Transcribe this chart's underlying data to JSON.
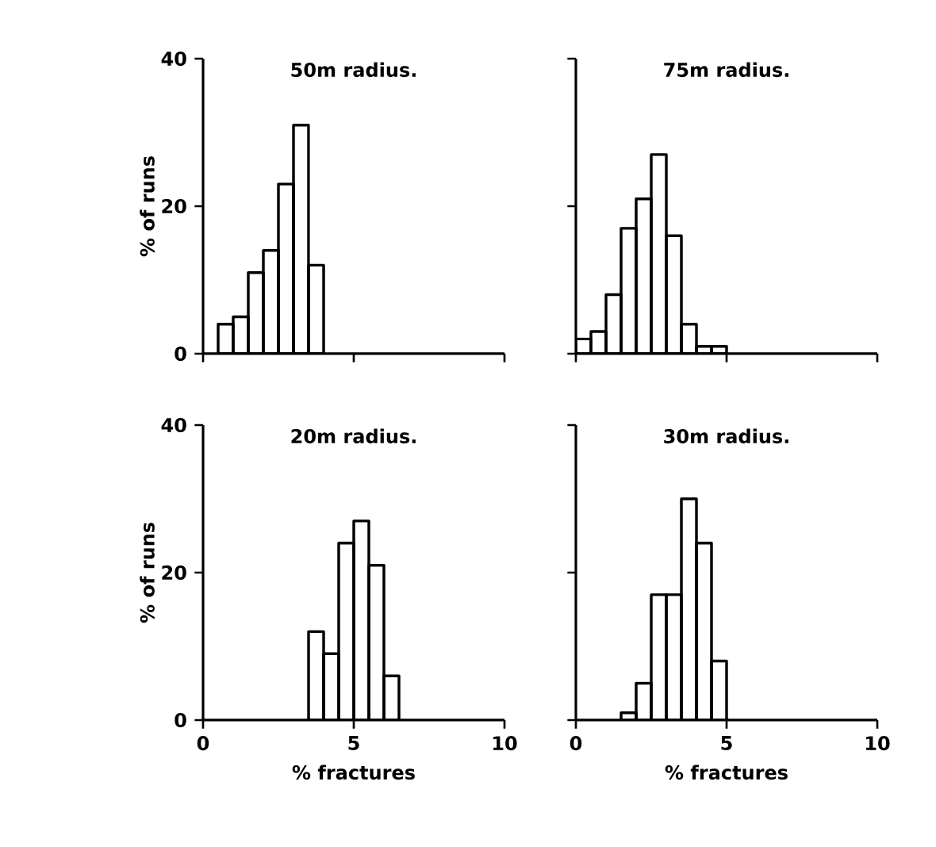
{
  "chart_data": [
    {
      "type": "histogram",
      "title": "50m radius.",
      "ylabel": "% of runs",
      "bins": [
        0.5,
        1,
        1.5,
        2,
        2.5,
        3,
        3.5,
        4
      ],
      "values": [
        4,
        5,
        11,
        14,
        23,
        31,
        12
      ],
      "color": "#000000",
      "xlim": [
        0,
        10
      ],
      "ylim": [
        0,
        40
      ],
      "xticks": [
        {
          "value": 0,
          "label": null
        },
        {
          "value": 5,
          "label": null
        },
        {
          "value": 10,
          "label": null
        }
      ],
      "yticks": [
        0,
        20,
        40
      ],
      "tick_labels": "y"
    },
    {
      "type": "histogram",
      "title": "75m radius.",
      "bins": [
        0,
        0.5,
        1,
        1.5,
        2,
        2.5,
        3,
        3.5,
        4,
        4.5,
        5
      ],
      "values": [
        2,
        3,
        8,
        17,
        21,
        27,
        16,
        4,
        1,
        1
      ],
      "color": "#000000",
      "xlim": [
        0,
        10
      ],
      "ylim": [
        0,
        40
      ],
      "xticks": [
        {
          "value": 0,
          "label": null
        },
        {
          "value": 5,
          "label": null
        },
        {
          "value": 10,
          "label": null
        }
      ],
      "yticks": [
        {
          "value": 0,
          "label": null
        },
        {
          "value": 20,
          "label": null
        },
        {
          "value": 40,
          "label": null
        }
      ],
      "tick_labels": false
    },
    {
      "type": "histogram",
      "title": "20m radius.",
      "xlabel": "% fractures",
      "ylabel": "% of runs",
      "bins": [
        3.5,
        4,
        4.5,
        5,
        5.5,
        6,
        6.5
      ],
      "values": [
        12,
        9,
        24,
        27,
        21,
        6
      ],
      "color": "#000000",
      "xlim": [
        0,
        10
      ],
      "ylim": [
        0,
        40
      ],
      "xticks": [
        0,
        5,
        10
      ],
      "yticks": [
        0,
        20,
        40
      ]
    },
    {
      "type": "histogram",
      "title": "30m radius.",
      "xlabel": "% fractures",
      "bins": [
        1.5,
        2,
        2.5,
        3,
        3.5,
        4,
        4.5,
        5
      ],
      "values": [
        1,
        5,
        17,
        17,
        30,
        24,
        8
      ],
      "color": "#000000",
      "xlim": [
        0,
        10
      ],
      "ylim": [
        0,
        40
      ],
      "xticks": [
        0,
        5,
        10
      ],
      "yticks": [
        {
          "value": 0,
          "label": null
        },
        {
          "value": 20,
          "label": null
        },
        {
          "value": 40,
          "label": null
        }
      ],
      "tick_labels": "x"
    }
  ]
}
